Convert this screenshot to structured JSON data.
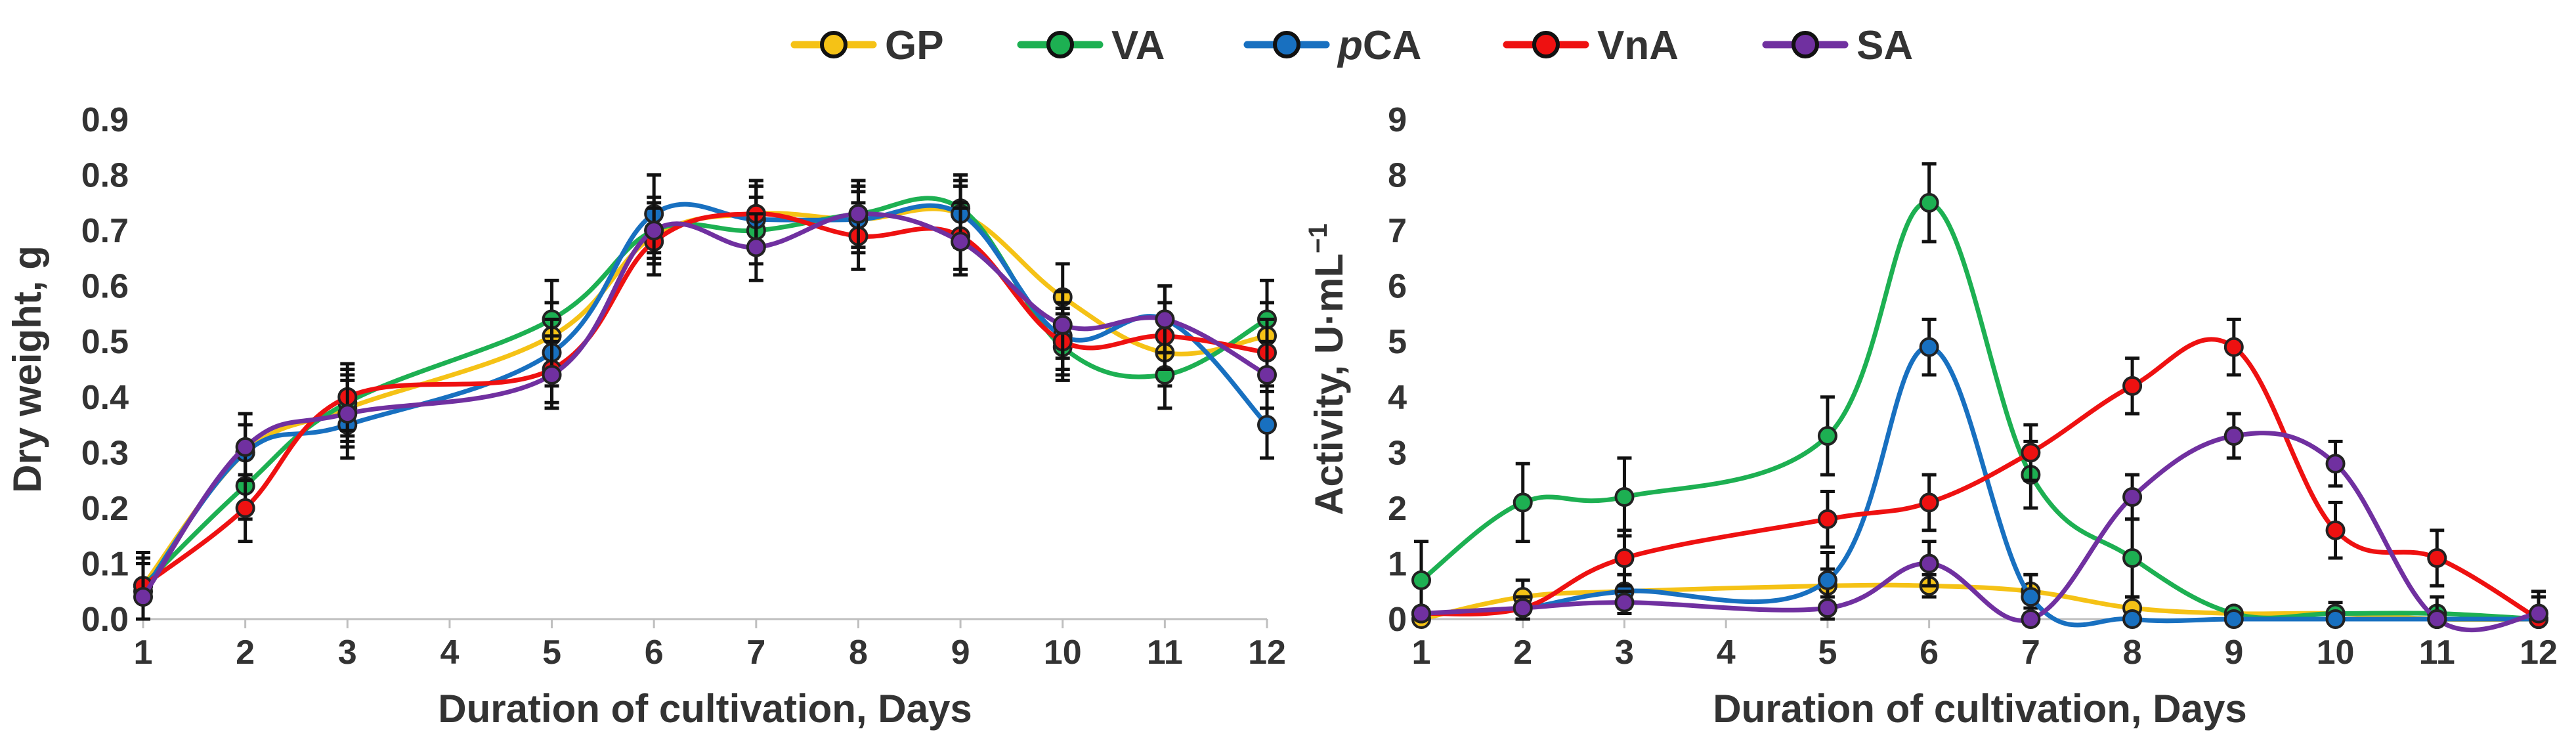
{
  "legend": [
    {
      "key": "GP",
      "prefix": "",
      "main": "GP",
      "color": "#F5C216"
    },
    {
      "key": "VA",
      "prefix": "",
      "main": "VA",
      "color": "#1DB052"
    },
    {
      "key": "pCA",
      "prefix": "p",
      "main": "CA",
      "color": "#1870C0"
    },
    {
      "key": "VnA",
      "prefix": "",
      "main": "VnA",
      "color": "#EE1111"
    },
    {
      "key": "SA",
      "prefix": "",
      "main": "SA",
      "color": "#7030A0"
    }
  ],
  "chart_data": [
    {
      "type": "line",
      "title": "",
      "xlabel": "Duration of cultivation, Days",
      "ylabel": "Dry weight, g",
      "x_tick_labels": [
        "1",
        "2",
        "3",
        "4",
        "5",
        "6",
        "7",
        "8",
        "9",
        "10",
        "11",
        "12"
      ],
      "y_tick_labels": [
        "0.0",
        "0.1",
        "0.2",
        "0.3",
        "0.4",
        "0.5",
        "0.6",
        "0.7",
        "0.8",
        "0.9"
      ],
      "xlim": [
        1,
        12
      ],
      "ylim": [
        0,
        0.9
      ],
      "x": [
        1,
        2,
        3,
        5,
        6,
        7,
        8,
        9,
        10,
        11,
        12
      ],
      "series": [
        {
          "name": "GP",
          "values": [
            0.06,
            0.3,
            0.38,
            0.51,
            0.69,
            0.73,
            0.72,
            0.73,
            0.58,
            0.48,
            0.51
          ],
          "errors": [
            0.06,
            0.05,
            0.06,
            0.06,
            0.05,
            0.05,
            0.05,
            0.05,
            0.06,
            0.06,
            0.06
          ]
        },
        {
          "name": "VA",
          "values": [
            0.06,
            0.24,
            0.39,
            0.54,
            0.7,
            0.7,
            0.73,
            0.74,
            0.49,
            0.44,
            0.54
          ],
          "errors": [
            0.06,
            0.06,
            0.06,
            0.07,
            0.05,
            0.06,
            0.06,
            0.06,
            0.06,
            0.06,
            0.07
          ]
        },
        {
          "name": "pCA",
          "values": [
            0.05,
            0.3,
            0.35,
            0.48,
            0.73,
            0.72,
            0.72,
            0.73,
            0.51,
            0.54,
            0.35
          ],
          "errors": [
            0.06,
            0.05,
            0.06,
            0.06,
            0.07,
            0.06,
            0.06,
            0.06,
            0.06,
            0.06,
            0.06
          ]
        },
        {
          "name": "VnA",
          "values": [
            0.06,
            0.2,
            0.4,
            0.45,
            0.68,
            0.73,
            0.69,
            0.69,
            0.5,
            0.51,
            0.48
          ],
          "errors": [
            0.06,
            0.06,
            0.06,
            0.06,
            0.06,
            0.06,
            0.06,
            0.06,
            0.06,
            0.06,
            0.06
          ]
        },
        {
          "name": "SA",
          "values": [
            0.04,
            0.31,
            0.37,
            0.44,
            0.7,
            0.67,
            0.73,
            0.68,
            0.53,
            0.54,
            0.44
          ],
          "errors": [
            0.06,
            0.06,
            0.06,
            0.06,
            0.06,
            0.06,
            0.06,
            0.06,
            0.06,
            0.06,
            0.06
          ]
        }
      ]
    },
    {
      "type": "line",
      "title": "",
      "xlabel": "Duration of cultivation, Days",
      "ylabel_main": "Activity, U·mL",
      "ylabel_sup": "−1",
      "x_tick_labels": [
        "1",
        "2",
        "3",
        "4",
        "5",
        "6",
        "7",
        "8",
        "9",
        "10",
        "11",
        "12"
      ],
      "y_tick_labels": [
        "0",
        "1",
        "2",
        "3",
        "4",
        "5",
        "6",
        "7",
        "8",
        "9"
      ],
      "xlim": [
        1,
        12
      ],
      "ylim": [
        0,
        9
      ],
      "x": [
        1,
        2,
        3,
        5,
        6,
        7,
        8,
        9,
        10,
        11,
        12
      ],
      "series": [
        {
          "name": "GP",
          "values": [
            0.0,
            0.4,
            0.5,
            0.6,
            0.6,
            0.5,
            0.2,
            0.1,
            0.1,
            0.0,
            0.0
          ],
          "errors": [
            0.1,
            0.3,
            0.3,
            0.3,
            0.2,
            0.3,
            0.2,
            0.1,
            0.1,
            0.1,
            0.1
          ]
        },
        {
          "name": "VA",
          "values": [
            0.7,
            2.1,
            2.2,
            3.3,
            7.5,
            2.6,
            1.1,
            0.1,
            0.1,
            0.1,
            0.0
          ],
          "errors": [
            0.7,
            0.7,
            0.7,
            0.7,
            0.7,
            0.6,
            0.7,
            0.1,
            0.2,
            0.1,
            0.1
          ]
        },
        {
          "name": "pCA",
          "values": [
            0.1,
            0.2,
            0.5,
            0.7,
            4.9,
            0.4,
            0.0,
            0.0,
            0.0,
            0.0,
            0.0
          ],
          "errors": [
            0.1,
            0.2,
            0.3,
            0.5,
            0.5,
            0.4,
            0.1,
            0.1,
            0.1,
            0.1,
            0.1
          ]
        },
        {
          "name": "VnA",
          "values": [
            0.1,
            0.2,
            1.1,
            1.8,
            2.1,
            3.0,
            4.2,
            4.9,
            1.6,
            1.1,
            0.0
          ],
          "errors": [
            0.1,
            0.2,
            0.5,
            0.5,
            0.5,
            0.5,
            0.5,
            0.5,
            0.5,
            0.5,
            0.4
          ]
        },
        {
          "name": "SA",
          "values": [
            0.1,
            0.2,
            0.3,
            0.2,
            1.0,
            0.0,
            2.2,
            3.3,
            2.8,
            0.0,
            0.1
          ],
          "errors": [
            0.1,
            0.1,
            0.2,
            0.2,
            0.4,
            0.1,
            0.4,
            0.4,
            0.4,
            0.4,
            0.4
          ]
        }
      ]
    }
  ]
}
